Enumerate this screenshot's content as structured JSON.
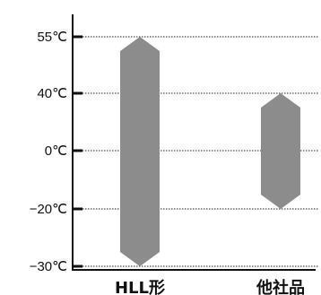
{
  "chart_data": {
    "type": "bar",
    "subtype": "range",
    "title": "",
    "xlabel": "",
    "ylabel": "",
    "unit": "℃",
    "y_ticks": [
      {
        "value": 55,
        "label": "55℃"
      },
      {
        "value": 40,
        "label": "40℃"
      },
      {
        "value": 0,
        "label": "0℃"
      },
      {
        "value": -20,
        "label": "−20℃"
      },
      {
        "value": -30,
        "label": "−30℃"
      }
    ],
    "categories": [
      "HLL形",
      "他社品"
    ],
    "series": [
      {
        "values": [
          [
            -30,
            55
          ],
          [
            -20,
            40
          ]
        ]
      }
    ],
    "grid": true,
    "legend": "none",
    "bar_color": "#8c8c8c"
  }
}
